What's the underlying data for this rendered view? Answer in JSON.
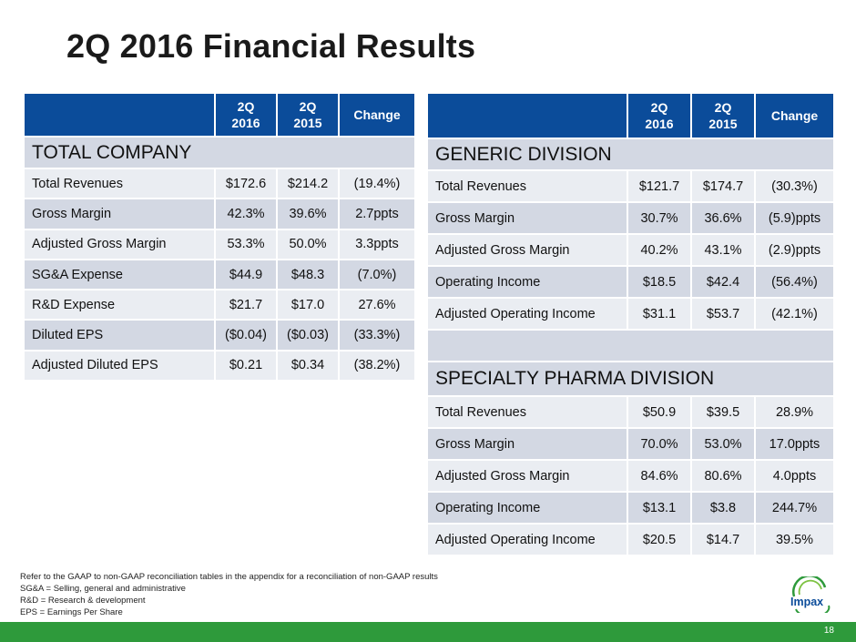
{
  "title": "2Q 2016 Financial Results",
  "left_table": {
    "headers": [
      "",
      "2Q\n2016",
      "2Q\n2015",
      "Change"
    ],
    "section": "TOTAL COMPANY",
    "rows": [
      [
        "Total Revenues",
        "$172.6",
        "$214.2",
        "(19.4%)"
      ],
      [
        "Gross Margin",
        "42.3%",
        "39.6%",
        "2.7ppts"
      ],
      [
        "Adjusted Gross Margin",
        "53.3%",
        "50.0%",
        "3.3ppts"
      ],
      [
        "SG&A Expense",
        "$44.9",
        "$48.3",
        "(7.0%)"
      ],
      [
        "R&D Expense",
        "$21.7",
        "$17.0",
        "27.6%"
      ],
      [
        "Diluted EPS",
        "($0.04)",
        "($0.03)",
        "(33.3%)"
      ],
      [
        "Adjusted Diluted EPS",
        "$0.21",
        "$0.34",
        "(38.2%)"
      ]
    ]
  },
  "right_table": {
    "headers": [
      "",
      "2Q\n2016",
      "2Q\n2015",
      "Change"
    ],
    "generic": {
      "section": "GENERIC DIVISION",
      "rows": [
        [
          "Total Revenues",
          "$121.7",
          "$174.7",
          "(30.3%)"
        ],
        [
          "Gross Margin",
          "30.7%",
          "36.6%",
          "(5.9)ppts"
        ],
        [
          "Adjusted Gross Margin",
          "40.2%",
          "43.1%",
          "(2.9)ppts"
        ],
        [
          "Operating Income",
          "$18.5",
          "$42.4",
          "(56.4%)"
        ],
        [
          "Adjusted Operating Income",
          "$31.1",
          "$53.7",
          "(42.1%)"
        ]
      ]
    },
    "specialty": {
      "section": "SPECIALTY PHARMA DIVISION",
      "rows": [
        [
          "Total Revenues",
          "$50.9",
          "$39.5",
          "28.9%"
        ],
        [
          "Gross Margin",
          "70.0%",
          "53.0%",
          "17.0ppts"
        ],
        [
          "Adjusted Gross Margin",
          "84.6%",
          "80.6%",
          "4.0ppts"
        ],
        [
          "Operating Income",
          "$13.1",
          "$3.8",
          "244.7%"
        ],
        [
          "Adjusted Operating Income",
          "$20.5",
          "$14.7",
          "39.5%"
        ]
      ]
    }
  },
  "notes": [
    "Refer to the GAAP to non-GAAP reconciliation tables in the appendix for a reconciliation of non-GAAP results",
    "SG&A = Selling, general and administrative",
    "R&D = Research & development",
    "EPS = Earnings Per Share"
  ],
  "logo_text": "Impax",
  "page_number": "18",
  "colors": {
    "header_blue": "#0b4c9a",
    "row_light": "#eaedf2",
    "row_dark": "#d3d8e3",
    "footer_green": "#2e9a3b"
  }
}
